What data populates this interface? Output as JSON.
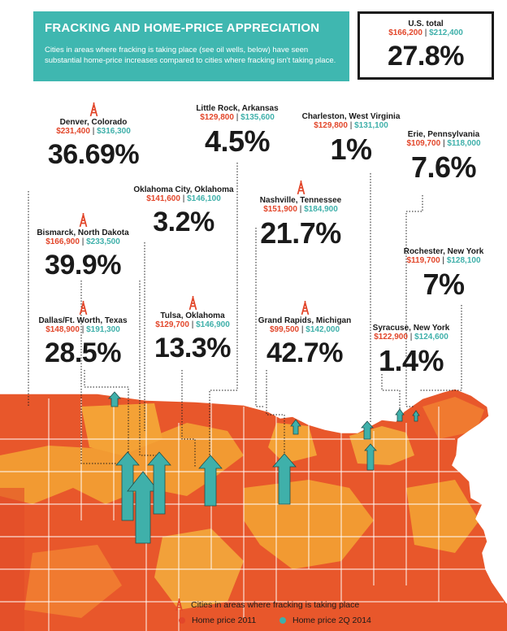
{
  "header": {
    "title": "FRACKING AND HOME-PRICE APPRECIATION",
    "subtitle": "Cities in areas where fracking is taking place (see oil wells, below) have seen substantial home-price increases compared to cities where fracking isn't taking place."
  },
  "us_total": {
    "label": "U.S. total",
    "price_2011": "$166,200",
    "price_2014": "$212,400",
    "pct": "27.8%"
  },
  "colors": {
    "teal": "#3fb7b0",
    "red": "#e2462a",
    "orange": "#f4a236",
    "dark": "#1a1a1a"
  },
  "legend": {
    "fracking": "Cities in areas where fracking is taking place",
    "price_2011": "Home price 2011",
    "price_2014": "Home price 2Q 2014"
  },
  "chart_data": {
    "type": "map",
    "title": "FRACKING AND HOME-PRICE APPRECIATION",
    "series": [
      {
        "name": "Home price 2011",
        "color": "#e2462a"
      },
      {
        "name": "Home price 2Q 2014",
        "color": "#3fb0aa"
      }
    ],
    "cities": [
      {
        "name": "Denver, Colorado",
        "price_2011": "$231,400",
        "price_2014": "$316,300",
        "pct": "36.69%",
        "fracking": true
      },
      {
        "name": "Little Rock, Arkansas",
        "price_2011": "$129,800",
        "price_2014": "$135,600",
        "pct": "4.5%",
        "fracking": false
      },
      {
        "name": "Charleston, West Virginia",
        "price_2011": "$129,800",
        "price_2014": "$131,100",
        "pct": "1%",
        "fracking": false
      },
      {
        "name": "Erie, Pennsylvania",
        "price_2011": "$109,700",
        "price_2014": "$118,000",
        "pct": "7.6%",
        "fracking": false
      },
      {
        "name": "Oklahoma City, Oklahoma",
        "price_2011": "$141,600",
        "price_2014": "$146,100",
        "pct": "3.2%",
        "fracking": false
      },
      {
        "name": "Nashville, Tennessee",
        "price_2011": "$151,900",
        "price_2014": "$184,900",
        "pct": "21.7%",
        "fracking": true
      },
      {
        "name": "Bismarck, North Dakota",
        "price_2011": "$166,900",
        "price_2014": "$233,500",
        "pct": "39.9%",
        "fracking": true
      },
      {
        "name": "Rochester, New York",
        "price_2011": "$119,700",
        "price_2014": "$128,100",
        "pct": "7%",
        "fracking": false
      },
      {
        "name": "Dallas/Ft. Worth, Texas",
        "price_2011": "$148,900",
        "price_2014": "$191,300",
        "pct": "28.5%",
        "fracking": true
      },
      {
        "name": "Tulsa, Oklahoma",
        "price_2011": "$129,700",
        "price_2014": "$146,900",
        "pct": "13.3%",
        "fracking": true
      },
      {
        "name": "Grand Rapids, Michigan",
        "price_2011": "$99,500",
        "price_2014": "$142,000",
        "pct": "42.7%",
        "fracking": true
      },
      {
        "name": "Syracuse, New York",
        "price_2011": "$122,900",
        "price_2014": "$124,600",
        "pct": "1.4%",
        "fracking": false
      }
    ]
  }
}
